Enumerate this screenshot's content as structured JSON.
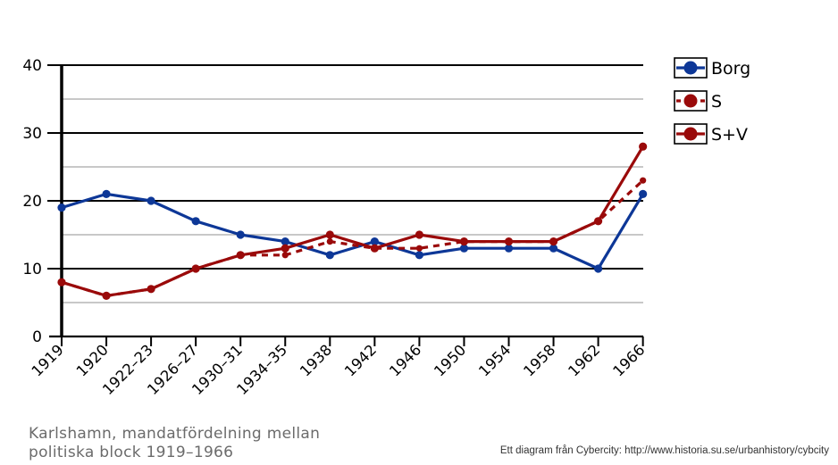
{
  "chart_data": {
    "type": "line",
    "categories": [
      "1919",
      "1920",
      "1922–23",
      "1926–27",
      "1930–31",
      "1934–35",
      "1938",
      "1942",
      "1946",
      "1950",
      "1954",
      "1958",
      "1962",
      "1966"
    ],
    "series": [
      {
        "name": "Borg",
        "color": "#0d3797",
        "dashed": false,
        "values": [
          19,
          21,
          20,
          17,
          15,
          14,
          12,
          14,
          12,
          13,
          13,
          13,
          10,
          21
        ]
      },
      {
        "name": "S",
        "color": "#9a0a0a",
        "dashed": true,
        "values": [
          8,
          6,
          7,
          10,
          12,
          12,
          14,
          13,
          13,
          14,
          14,
          14,
          17,
          23
        ]
      },
      {
        "name": "S+V",
        "color": "#9a0a0a",
        "dashed": false,
        "values": [
          8,
          6,
          7,
          10,
          12,
          13,
          15,
          13,
          15,
          14,
          14,
          14,
          17,
          28
        ]
      }
    ],
    "ylim": [
      0,
      40
    ],
    "yticks": [
      0,
      10,
      20,
      30,
      40
    ],
    "grid": "horizontal, major every 10, minor every 5",
    "legend": "right"
  },
  "caption": {
    "line1": "Karlshamn, mandatfördelning mellan",
    "line2": "politiska block 1919–1966"
  },
  "credit": "Ett diagram från Cybercity: http://www.historia.su.se/urbanhistory/cybcity"
}
